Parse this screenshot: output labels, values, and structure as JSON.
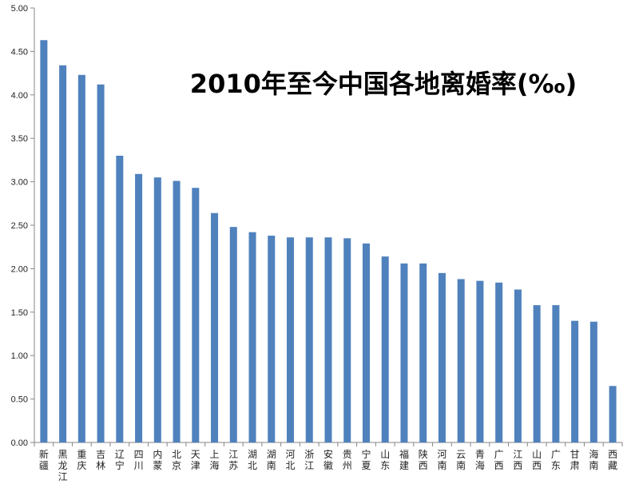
{
  "chart_data": {
    "type": "bar",
    "title": "2010年至今中国各地离婚率(‰)",
    "xlabel": "",
    "ylabel": "",
    "ylim": [
      0,
      5
    ],
    "yticks": [
      "0.00",
      "0.50",
      "1.00",
      "1.50",
      "2.00",
      "2.50",
      "3.00",
      "3.50",
      "4.00",
      "4.50",
      "5.00"
    ],
    "grid": false,
    "legend": "none",
    "bar_color": "#4F81BD",
    "categories": [
      "新疆",
      "黑龙江",
      "重庆",
      "吉林",
      "辽宁",
      "四川",
      "内蒙",
      "北京",
      "天津",
      "上海",
      "江苏",
      "湖北",
      "湖南",
      "河北",
      "浙江",
      "安徽",
      "贵州",
      "宁夏",
      "山东",
      "福建",
      "陕西",
      "河南",
      "云南",
      "青海",
      "广西",
      "江西",
      "山西",
      "广东",
      "甘肃",
      "海南",
      "西藏"
    ],
    "values": [
      4.63,
      4.34,
      4.23,
      4.12,
      3.3,
      3.09,
      3.05,
      3.01,
      2.93,
      2.64,
      2.48,
      2.42,
      2.38,
      2.36,
      2.36,
      2.36,
      2.35,
      2.29,
      2.14,
      2.06,
      2.06,
      1.95,
      1.88,
      1.86,
      1.84,
      1.76,
      1.58,
      1.58,
      1.4,
      1.39,
      0.65
    ]
  }
}
